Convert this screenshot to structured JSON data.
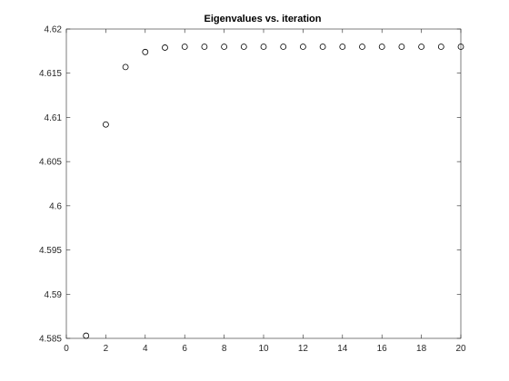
{
  "chart_data": {
    "type": "scatter",
    "title": "Eigenvalues vs. iteration",
    "xlabel": "",
    "ylabel": "",
    "xlim": [
      0,
      20
    ],
    "ylim": [
      4.585,
      4.62
    ],
    "x_ticks": [
      0,
      2,
      4,
      6,
      8,
      10,
      12,
      14,
      16,
      18,
      20
    ],
    "y_ticks": [
      4.585,
      4.59,
      4.595,
      4.6,
      4.605,
      4.61,
      4.615,
      4.62
    ],
    "grid": false,
    "legend": "none",
    "marker": "open-circle",
    "marker_color": "#000000",
    "series": [
      {
        "x": [
          1,
          2,
          3,
          4,
          5,
          6,
          7,
          8,
          9,
          10,
          11,
          12,
          13,
          14,
          15,
          16,
          17,
          18,
          19,
          20
        ],
        "y": [
          4.5853,
          4.6092,
          4.6157,
          4.6174,
          4.6179,
          4.618,
          4.618,
          4.618,
          4.618,
          4.618,
          4.618,
          4.618,
          4.618,
          4.618,
          4.618,
          4.618,
          4.618,
          4.618,
          4.618,
          4.618
        ]
      }
    ]
  }
}
